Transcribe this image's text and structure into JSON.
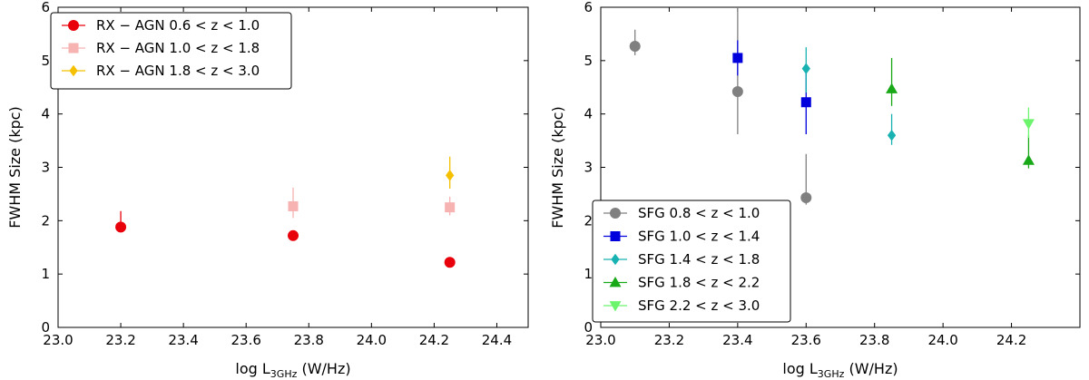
{
  "chart_data": [
    {
      "type": "scatter",
      "panel": "left",
      "xlabel_prefix": "log L",
      "xlabel_sub": "3GHz",
      "xlabel_suffix": " (W/Hz)",
      "ylabel": "FWHM Size (kpc)",
      "xlim": [
        23.0,
        24.5
      ],
      "ylim": [
        0,
        6
      ],
      "xticks": [
        23.0,
        23.2,
        23.4,
        23.6,
        23.8,
        24.0,
        24.2,
        24.4
      ],
      "xtick_labels": [
        "23.0",
        "23.2",
        "23.4",
        "23.6",
        "23.8",
        "24.0",
        "24.2",
        "24.4"
      ],
      "yticks": [
        0,
        1,
        2,
        3,
        4,
        5,
        6
      ],
      "ytick_labels": [
        "0",
        "1",
        "2",
        "3",
        "4",
        "5",
        "6"
      ],
      "legend_position": "top-left",
      "series": [
        {
          "name": "RX − AGN 0.6 < z < 1.0",
          "color": "#e8000b",
          "marker": "circle",
          "points": [
            {
              "x": 23.2,
              "y": 1.88,
              "ylo": 1.8,
              "yhi": 2.18
            },
            {
              "x": 23.75,
              "y": 1.72,
              "ylo": 1.67,
              "yhi": 1.76
            },
            {
              "x": 24.25,
              "y": 1.22,
              "ylo": 1.18,
              "yhi": 1.26
            }
          ]
        },
        {
          "name": "RX − AGN 1.0 < z < 1.8",
          "color": "#f7b2b2",
          "marker": "square",
          "points": [
            {
              "x": 23.75,
              "y": 2.27,
              "ylo": 2.05,
              "yhi": 2.62
            },
            {
              "x": 24.25,
              "y": 2.25,
              "ylo": 2.1,
              "yhi": 2.45
            }
          ]
        },
        {
          "name": "RX − AGN 1.8 < z < 3.0",
          "color": "#f5c000",
          "marker": "diamond",
          "points": [
            {
              "x": 24.25,
              "y": 2.85,
              "ylo": 2.6,
              "yhi": 3.2
            }
          ]
        }
      ]
    },
    {
      "type": "scatter",
      "panel": "right",
      "xlabel_prefix": "log L",
      "xlabel_sub": "3GHz",
      "xlabel_suffix": " (W/Hz)",
      "ylabel": "FWHM Size (kpc)",
      "xlim": [
        23.0,
        24.4
      ],
      "ylim": [
        0,
        6
      ],
      "xticks": [
        23.0,
        23.2,
        23.4,
        23.6,
        23.8,
        24.0,
        24.2
      ],
      "xtick_labels": [
        "23.0",
        "23.2",
        "23.4",
        "23.6",
        "23.8",
        "24.0",
        "24.2"
      ],
      "yticks": [
        0,
        1,
        2,
        3,
        4,
        5,
        6
      ],
      "ytick_labels": [
        "0",
        "1",
        "2",
        "3",
        "4",
        "5",
        "6"
      ],
      "legend_position": "bottom-left",
      "series": [
        {
          "name": "SFG 0.8 < z < 1.0",
          "color": "#808080",
          "marker": "circle",
          "points": [
            {
              "x": 23.1,
              "y": 5.27,
              "ylo": 5.1,
              "yhi": 5.58
            },
            {
              "x": 23.4,
              "y": 4.42,
              "ylo": 3.62,
              "yhi": 6.0
            },
            {
              "x": 23.6,
              "y": 2.43,
              "ylo": 2.3,
              "yhi": 3.25
            }
          ]
        },
        {
          "name": "SFG 1.0 < z < 1.4",
          "color": "#0000dd",
          "marker": "square",
          "points": [
            {
              "x": 23.4,
              "y": 5.05,
              "ylo": 4.72,
              "yhi": 5.38
            },
            {
              "x": 23.6,
              "y": 4.22,
              "ylo": 3.62,
              "yhi": 4.78
            }
          ]
        },
        {
          "name": "SFG 1.4 < z < 1.8",
          "color": "#19b2b2",
          "marker": "diamond",
          "points": [
            {
              "x": 23.6,
              "y": 4.85,
              "ylo": 4.4,
              "yhi": 5.25
            },
            {
              "x": 23.85,
              "y": 3.6,
              "ylo": 3.42,
              "yhi": 4.0
            }
          ]
        },
        {
          "name": "SFG 1.8 < z < 2.2",
          "color": "#18a818",
          "marker": "triangle-up",
          "points": [
            {
              "x": 23.85,
              "y": 4.47,
              "ylo": 4.15,
              "yhi": 5.05
            },
            {
              "x": 24.25,
              "y": 3.13,
              "ylo": 2.98,
              "yhi": 3.6
            }
          ]
        },
        {
          "name": "SFG 2.2 < z < 3.0",
          "color": "#6cf56c",
          "marker": "triangle-down",
          "points": [
            {
              "x": 24.25,
              "y": 3.82,
              "ylo": 3.55,
              "yhi": 4.12
            }
          ]
        }
      ]
    }
  ]
}
